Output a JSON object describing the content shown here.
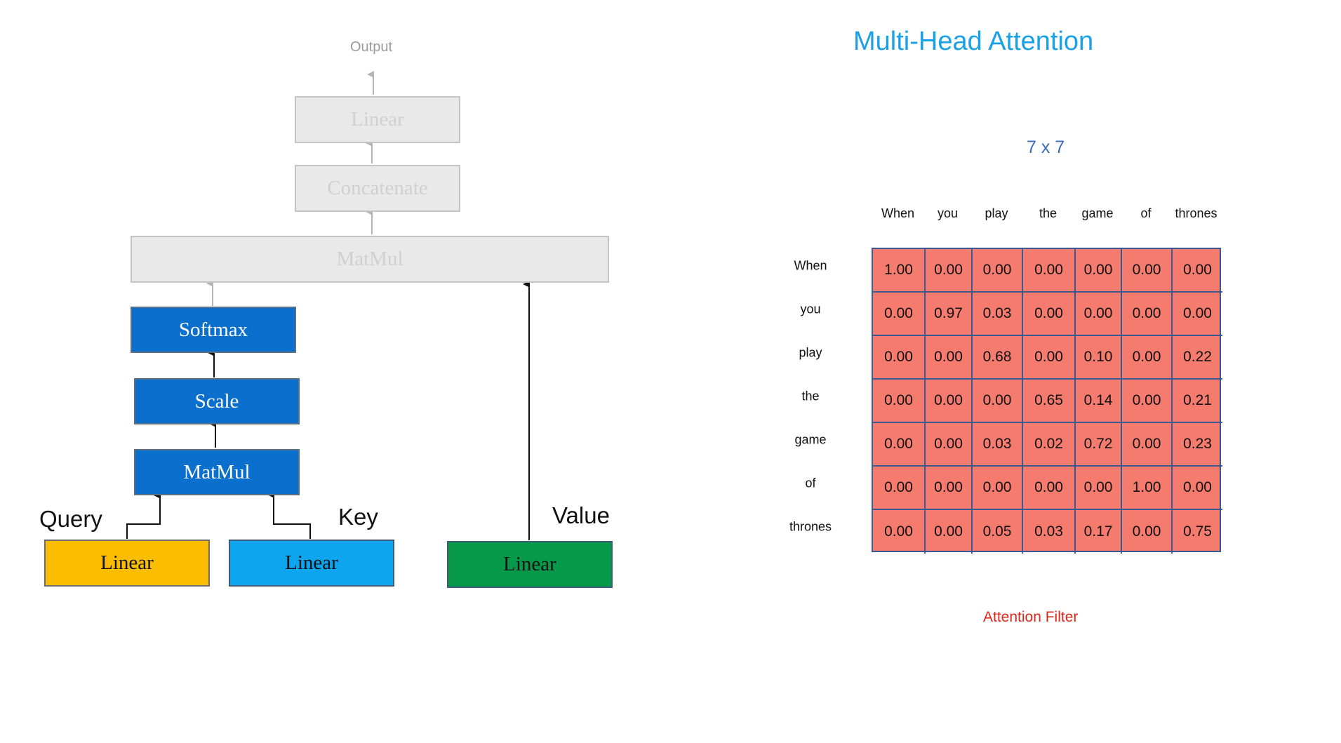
{
  "diagram": {
    "output_label": "Output",
    "top_linear": "Linear",
    "concatenate": "Concatenate",
    "top_matmul": "MatMul",
    "softmax": "Softmax",
    "scale": "Scale",
    "matmul": "MatMul",
    "query_label": "Query",
    "key_label": "Key",
    "value_label": "Value",
    "query_linear": "Linear",
    "key_linear": "Linear",
    "value_linear": "Linear",
    "colors": {
      "faded": "#e9e9e9",
      "block_blue": "#0a6fcd",
      "query": "#fbbd00",
      "key": "#0ea5ef",
      "value": "#07994a"
    }
  },
  "attention": {
    "title": "Multi-Head Attention",
    "dims": "7 x 7",
    "caption": "Attention Filter",
    "columns": [
      "When",
      "you",
      "play",
      "the",
      "game",
      "of",
      "thrones"
    ],
    "rows": [
      "When",
      "you",
      "play",
      "the",
      "game",
      "of",
      "thrones"
    ],
    "matrix": [
      [
        "1.00",
        "0.00",
        "0.00",
        "0.00",
        "0.00",
        "0.00",
        "0.00"
      ],
      [
        "0.00",
        "0.97",
        "0.03",
        "0.00",
        "0.00",
        "0.00",
        "0.00"
      ],
      [
        "0.00",
        "0.00",
        "0.68",
        "0.00",
        "0.10",
        "0.00",
        "0.22"
      ],
      [
        "0.00",
        "0.00",
        "0.00",
        "0.65",
        "0.14",
        "0.00",
        "0.21"
      ],
      [
        "0.00",
        "0.00",
        "0.03",
        "0.02",
        "0.72",
        "0.00",
        "0.23"
      ],
      [
        "0.00",
        "0.00",
        "0.00",
        "0.00",
        "0.00",
        "1.00",
        "0.00"
      ],
      [
        "0.00",
        "0.00",
        "0.05",
        "0.03",
        "0.17",
        "0.00",
        "0.75"
      ]
    ],
    "colors": {
      "cell_fill": "#f47b6e",
      "grid": "#3b5a94",
      "title": "#1aa0e6",
      "caption": "#e1261c"
    }
  }
}
